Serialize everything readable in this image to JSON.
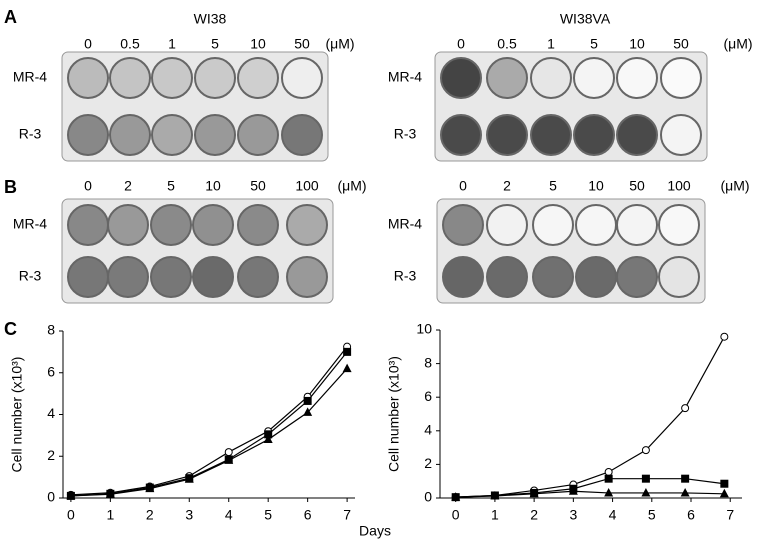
{
  "panels": {
    "a": {
      "label": "A",
      "left_title": "WI38",
      "right_title": "WI38VA",
      "left_concentrations": [
        "0",
        "0.5",
        "1",
        "5",
        "10",
        "50"
      ],
      "right_concentrations": [
        "0",
        "0.5",
        "1",
        "5",
        "10",
        "50"
      ],
      "unit": "(μM)",
      "rows": [
        "MR-4",
        "R-3"
      ]
    },
    "b": {
      "label": "B",
      "left_concentrations": [
        "0",
        "2",
        "5",
        "10",
        "50",
        "100"
      ],
      "right_concentrations": [
        "0",
        "2",
        "5",
        "10",
        "50",
        "100"
      ],
      "unit": "(μM)",
      "rows": [
        "MR-4",
        "R-3"
      ]
    },
    "c": {
      "label": "C",
      "shared_xlabel": "Days"
    }
  },
  "chart_data": [
    {
      "type": "line",
      "ylabel": "Cell number (x10³)",
      "xlim": [
        -0.2,
        7.2
      ],
      "xticks": [
        0,
        1,
        2,
        3,
        4,
        5,
        6,
        7
      ],
      "ylim": [
        0,
        8
      ],
      "yticks": [
        0,
        2,
        4,
        6,
        8
      ],
      "series": [
        {
          "marker": "circle-open",
          "color": "#000000",
          "x": [
            0,
            1,
            2,
            3,
            4,
            5,
            6,
            7
          ],
          "values": [
            0.15,
            0.25,
            0.55,
            1.05,
            2.2,
            3.2,
            4.85,
            7.25
          ]
        },
        {
          "marker": "square",
          "color": "#000000",
          "x": [
            0,
            1,
            2,
            3,
            4,
            5,
            6,
            7
          ],
          "values": [
            0.1,
            0.2,
            0.5,
            0.95,
            1.85,
            3.05,
            4.65,
            7.0
          ]
        },
        {
          "marker": "triangle",
          "color": "#000000",
          "x": [
            0,
            1,
            2,
            3,
            4,
            5,
            6,
            7
          ],
          "values": [
            0.1,
            0.18,
            0.45,
            0.9,
            1.8,
            2.8,
            4.1,
            6.2
          ]
        }
      ]
    },
    {
      "type": "line",
      "ylabel": "Cell number (x10³)",
      "xlim": [
        -0.4,
        7.3
      ],
      "xticks": [
        0,
        1,
        2,
        3,
        4,
        5,
        6,
        7
      ],
      "ylim": [
        0,
        10
      ],
      "yticks": [
        0,
        2,
        4,
        6,
        8,
        10
      ],
      "series": [
        {
          "marker": "circle-open",
          "color": "#000000",
          "x": [
            0,
            1,
            2,
            3,
            3.9,
            4.85,
            5.85,
            6.85
          ],
          "values": [
            0.05,
            0.15,
            0.45,
            0.8,
            1.55,
            2.85,
            5.35,
            9.6
          ]
        },
        {
          "marker": "square",
          "color": "#000000",
          "x": [
            0,
            1,
            2,
            3,
            3.9,
            4.85,
            5.85,
            6.85
          ],
          "values": [
            0.05,
            0.15,
            0.3,
            0.55,
            1.15,
            1.15,
            1.15,
            0.85
          ]
        },
        {
          "marker": "triangle",
          "color": "#000000",
          "x": [
            0,
            1,
            2,
            3,
            3.9,
            4.85,
            5.85,
            6.85
          ],
          "values": [
            0.05,
            0.12,
            0.25,
            0.4,
            0.3,
            0.3,
            0.3,
            0.25
          ]
        }
      ]
    }
  ]
}
